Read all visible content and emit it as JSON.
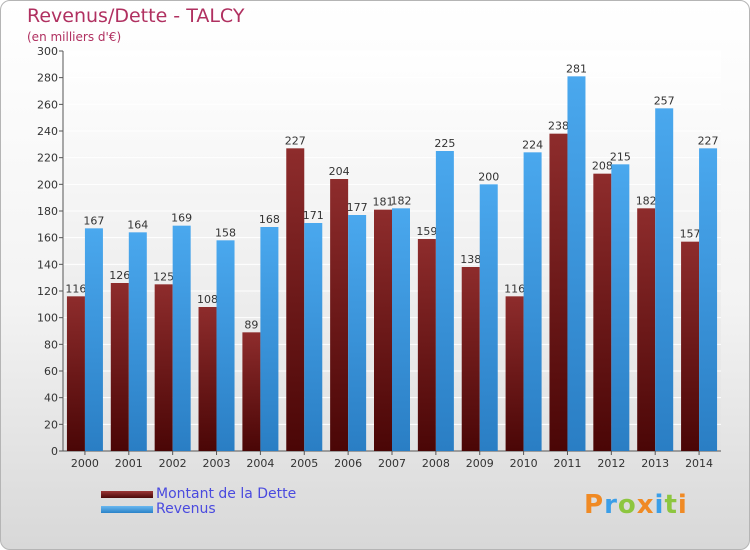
{
  "chart_data": {
    "type": "bar",
    "title": "Revenus/Dette - TALCY",
    "subtitle": "(en milliers d'€)",
    "categories": [
      "2000",
      "2001",
      "2002",
      "2003",
      "2004",
      "2005",
      "2006",
      "2007",
      "2008",
      "2009",
      "2010",
      "2011",
      "2012",
      "2013",
      "2014"
    ],
    "series": [
      {
        "name": "Montant de la Dette",
        "color": "#7a1a1a",
        "values": [
          116,
          126,
          125,
          108,
          89,
          227,
          204,
          181,
          159,
          138,
          116,
          238,
          208,
          182,
          157
        ]
      },
      {
        "name": "Revenus",
        "color": "#3a9ee8",
        "values": [
          167,
          164,
          169,
          158,
          168,
          171,
          177,
          182,
          225,
          200,
          224,
          281,
          215,
          257,
          227
        ]
      }
    ],
    "ylim": [
      0,
      300
    ],
    "ytick_step": 20,
    "grid": true,
    "legend_position": "bottom-left"
  },
  "logo": {
    "letters": [
      "P",
      "r",
      "o",
      "x",
      "i",
      "t",
      "i"
    ],
    "colors": [
      "#f08a24",
      "#3a9ee8",
      "#8dc63f",
      "#f08a24",
      "#3a9ee8",
      "#8dc63f",
      "#f08a24"
    ]
  }
}
